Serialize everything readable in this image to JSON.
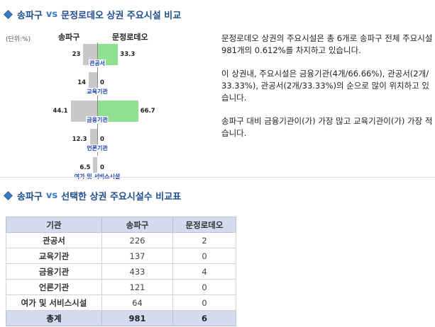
{
  "section1": {
    "left": "송파구",
    "vs": "vs",
    "right": "문정로데오 상권 주요시설 비교"
  },
  "section2": {
    "left": "송파구",
    "vs": "vs",
    "right": "선택한 상권 주요시설수 비교표"
  },
  "unit_label": "(단위:%)",
  "chart_data": {
    "type": "bar",
    "orientation": "horizontal-diverging",
    "title": "",
    "categories": [
      "관공서",
      "교육기관",
      "금융기관",
      "언론기관",
      "여가 및 서비스시설"
    ],
    "series": [
      {
        "name": "송파구",
        "values": [
          23,
          14,
          44.1,
          12.3,
          6.5
        ],
        "color": "#c8c8c8"
      },
      {
        "name": "문정로데오",
        "values": [
          33.3,
          0,
          66.7,
          0,
          0
        ],
        "color": "#8fe08f"
      }
    ],
    "value_labels_left": [
      "23",
      "14",
      "44.1",
      "12.3",
      "6.5"
    ],
    "value_labels_right": [
      "33.3",
      "0",
      "66.7",
      "0",
      "0"
    ],
    "xlim": [
      0,
      100
    ],
    "grid": false
  },
  "description": {
    "p1": "문정로데오 상권의 주요시설은 총 6개로 송파구 전체 주요시설 981개의 0.612%를 차지하고 있습니다.",
    "p2": "이 상권내, 주요시설은 금융기관(4개/66.66%), 관공서(2개/33.33%), 관공서(2개/33.33%)의 순으로 많이 위치하고 있습니다.",
    "p3": "송파구 대비 금융기관이(가) 가장 많고 교육기관이(가) 가장 적습니다."
  },
  "table": {
    "headers": [
      "기관",
      "송파구",
      "문정로데오"
    ],
    "rows": [
      [
        "관공서",
        "226",
        "2"
      ],
      [
        "교육기관",
        "137",
        "0"
      ],
      [
        "금융기관",
        "433",
        "4"
      ],
      [
        "언론기관",
        "121",
        "0"
      ],
      [
        "여가 및 서비스시설",
        "64",
        "0"
      ]
    ],
    "total": [
      "총계",
      "981",
      "6"
    ]
  }
}
